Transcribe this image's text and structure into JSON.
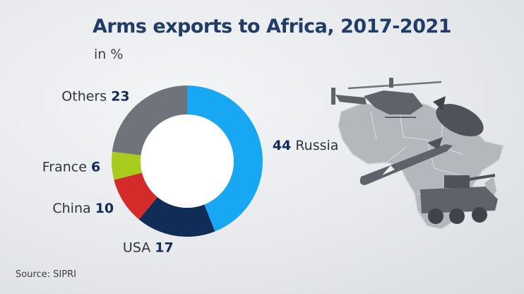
{
  "header": {
    "title": "Arms exports to Africa, 2017-2021",
    "subtitle": "in %"
  },
  "footer": {
    "source": "Source: SIPRI"
  },
  "colors": {
    "title": "#1f3d66",
    "value": "#0f2d56",
    "label": "#2f353b",
    "Russia": "#18a7f2",
    "USA": "#0f2d56",
    "China": "#d52a2a",
    "France": "#a8cc1c",
    "Others": "#6f747a",
    "illustration": "#a7acb2"
  },
  "illustration": {
    "icons": [
      "africa-map-icon",
      "helicopter-icon",
      "bomb-icon",
      "missile-icon",
      "armored-vehicle-icon"
    ]
  },
  "chart_data": {
    "type": "pie",
    "variant": "donut",
    "title": "Arms exports to Africa, 2017-2021",
    "unit": "in %",
    "slices": [
      {
        "label": "Russia",
        "value": 44
      },
      {
        "label": "USA",
        "value": 17
      },
      {
        "label": "China",
        "value": 10
      },
      {
        "label": "France",
        "value": 6
      },
      {
        "label": "Others",
        "value": 23
      }
    ]
  }
}
